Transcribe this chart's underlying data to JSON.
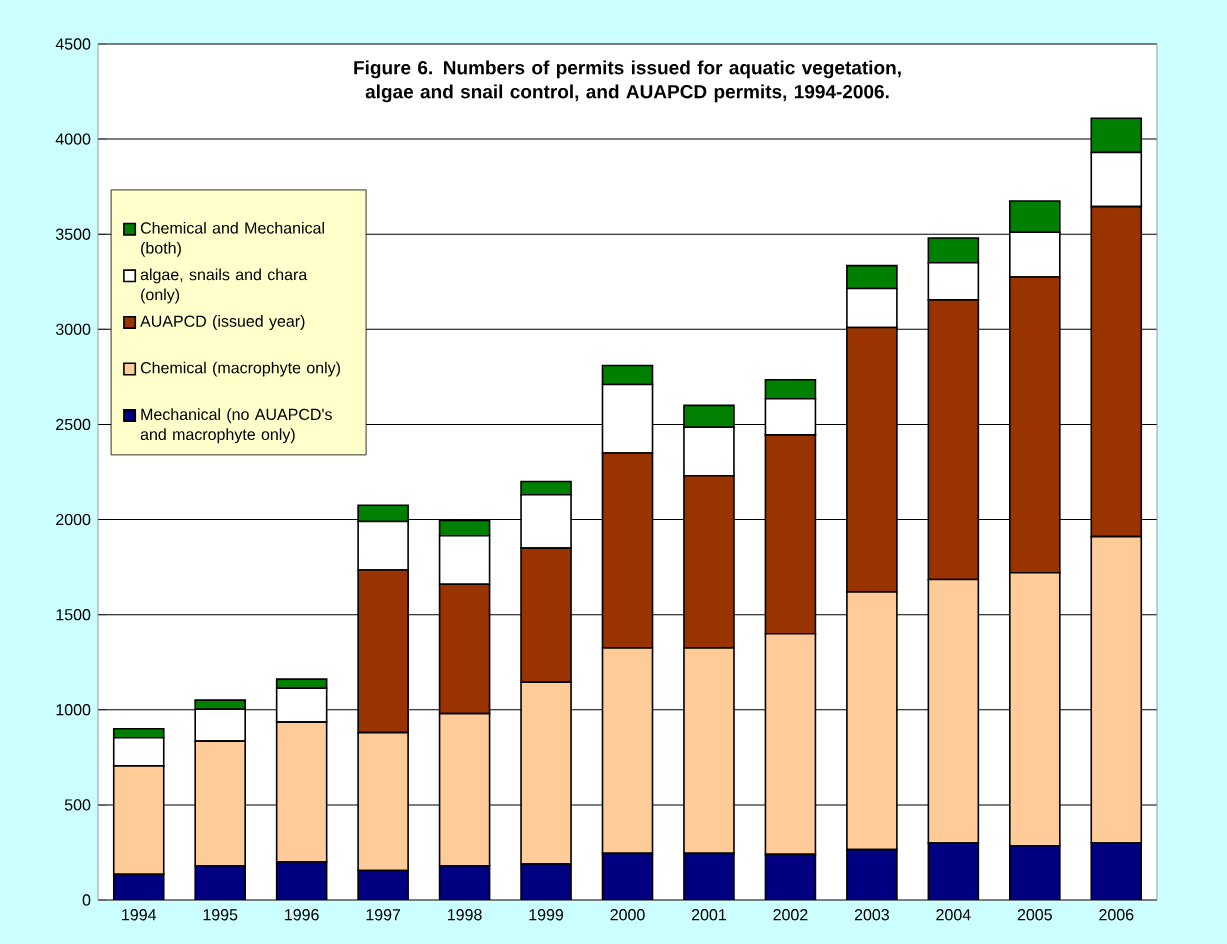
{
  "chart_data": {
    "type": "bar",
    "stacked": true,
    "title": "Figure 6. Numbers of permits issued for aquatic vegetation, algae and snail control, and AUAPCD permits, 1994-2006.",
    "categories": [
      "1994",
      "1995",
      "1996",
      "1997",
      "1998",
      "1999",
      "2000",
      "2001",
      "2002",
      "2003",
      "2004",
      "2005",
      "2006"
    ],
    "series": [
      {
        "name": "Mechanical (no AUAPCD's and macrophyte only)",
        "color": "#000080",
        "values": [
          135,
          180,
          200,
          155,
          180,
          190,
          245,
          245,
          240,
          265,
          300,
          285,
          300
        ]
      },
      {
        "name": "Chemical (macrophyte only)",
        "color": "#ffcc99",
        "values": [
          570,
          655,
          735,
          725,
          800,
          955,
          1080,
          1080,
          1160,
          1355,
          1385,
          1435,
          1610
        ]
      },
      {
        "name": "AUAPCD (issued year)",
        "color": "#993300",
        "values": [
          0,
          0,
          0,
          855,
          680,
          705,
          1025,
          905,
          1045,
          1390,
          1470,
          1555,
          1735
        ]
      },
      {
        "name": "algae, snails and chara (only)",
        "color": "#ffffff",
        "values": [
          148,
          168,
          179,
          255,
          255,
          280,
          360,
          255,
          190,
          205,
          195,
          235,
          285
        ]
      },
      {
        "name": "Chemical and Mechanical (both)",
        "color": "#008000",
        "values": [
          47,
          48,
          47,
          85,
          80,
          70,
          100,
          115,
          100,
          120,
          130,
          165,
          180
        ]
      }
    ],
    "ylim": [
      0,
      4500
    ],
    "yticks": [
      0,
      500,
      1000,
      1500,
      2000,
      2500,
      3000,
      3500,
      4000,
      4500
    ],
    "grid": "y",
    "legend": "top left"
  }
}
